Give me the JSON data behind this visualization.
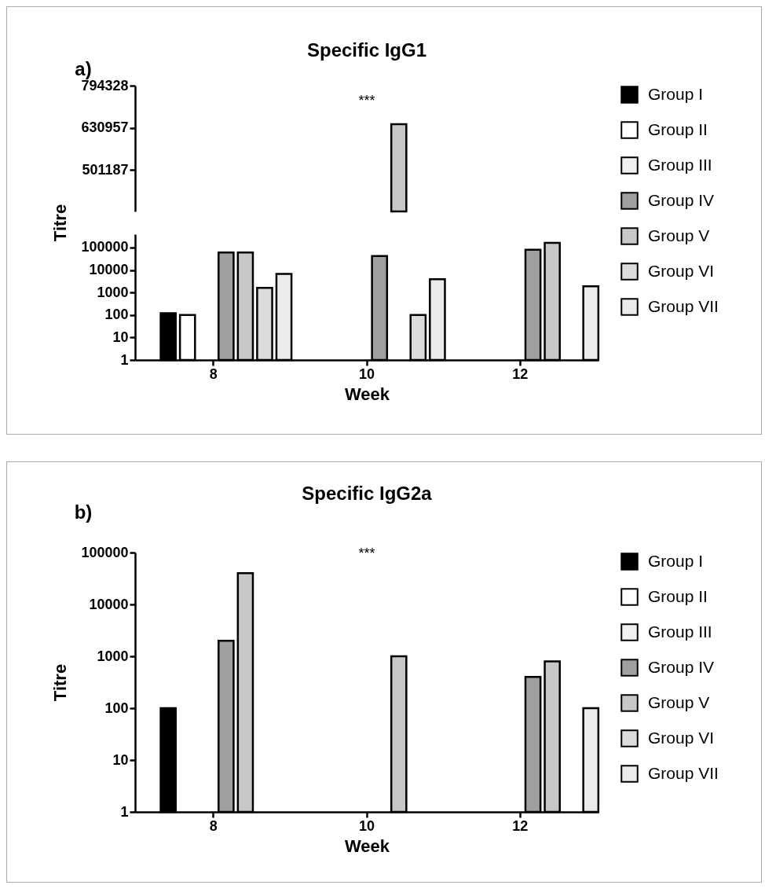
{
  "chart_data": [
    {
      "type": "bar",
      "title": "Specific IgG1",
      "annotations": [
        "a)",
        "***"
      ],
      "categories": [
        "8",
        "10",
        "12"
      ],
      "tick_labels": "y",
      "log": true,
      "ylim": [
        400000,
        794328
      ],
      "yticks": [
        501187,
        630957,
        794328
      ],
      "grid": false,
      "legend": "right",
      "series": [
        {
          "name": "Group I",
          "color": "#000000",
          "values": [
            null,
            null,
            null
          ]
        },
        {
          "name": "Group II",
          "color": "#ffffff",
          "values": [
            null,
            null,
            null
          ]
        },
        {
          "name": "Group III",
          "color": "#f0f0f0",
          "values": [
            null,
            null,
            null
          ]
        },
        {
          "name": "Group IV",
          "color": "#a0a0a0",
          "values": [
            null,
            null,
            null
          ]
        },
        {
          "name": "Group V",
          "color": "#c8c8c8",
          "values": [
            null,
            644000,
            null
          ]
        },
        {
          "name": "Group VI",
          "color": "#dcdcdc",
          "values": [
            null,
            null,
            null
          ]
        },
        {
          "name": "Group VII",
          "color": "#ebebeb",
          "values": [
            null,
            null,
            null
          ]
        }
      ]
    },
    {
      "type": "bar",
      "xlabel": "Week",
      "ylabel": "Titre",
      "categories": [
        "8",
        "10",
        "12"
      ],
      "log": true,
      "ylim": [
        1,
        390000
      ],
      "yticks": [
        1,
        10,
        100,
        1000,
        10000,
        100000
      ],
      "grid": false,
      "series": [
        {
          "color": "#000000",
          "values": [
            120,
            null,
            null
          ]
        },
        {
          "color": "#ffffff",
          "values": [
            100,
            null,
            null
          ]
        },
        {
          "color": "#f0f0f0",
          "values": [
            null,
            null,
            null
          ]
        },
        {
          "color": "#a0a0a0",
          "values": [
            60000,
            42000,
            80000
          ]
        },
        {
          "color": "#c8c8c8",
          "values": [
            60000,
            null,
            160000
          ]
        },
        {
          "color": "#dcdcdc",
          "values": [
            1600,
            100,
            null
          ]
        },
        {
          "color": "#ebebeb",
          "values": [
            6700,
            3900,
            1900
          ]
        }
      ]
    },
    {
      "type": "bar",
      "title": "Specific IgG2a",
      "xlabel": "Week",
      "ylabel": "Titre",
      "annotations": [
        "b)",
        "***"
      ],
      "categories": [
        "8",
        "10",
        "12"
      ],
      "log": true,
      "ylim": [
        1,
        100000
      ],
      "yticks": [
        1,
        10,
        100,
        1000,
        10000,
        100000
      ],
      "grid": false,
      "legend": "top right",
      "series": [
        {
          "name": "Group I",
          "color": "#000000",
          "values": [
            100,
            null,
            null
          ]
        },
        {
          "name": "Group II",
          "color": "#ffffff",
          "values": [
            null,
            null,
            null
          ]
        },
        {
          "name": "Group III",
          "color": "#f0f0f0",
          "values": [
            null,
            null,
            null
          ]
        },
        {
          "name": "Group IV",
          "color": "#a0a0a0",
          "values": [
            2000,
            null,
            400
          ]
        },
        {
          "name": "Group V",
          "color": "#c8c8c8",
          "values": [
            40000,
            1000,
            800
          ]
        },
        {
          "name": "Group VI",
          "color": "#dcdcdc",
          "values": [
            null,
            null,
            null
          ]
        },
        {
          "name": "Group VII",
          "color": "#ebebeb",
          "values": [
            null,
            null,
            100
          ]
        }
      ]
    }
  ]
}
